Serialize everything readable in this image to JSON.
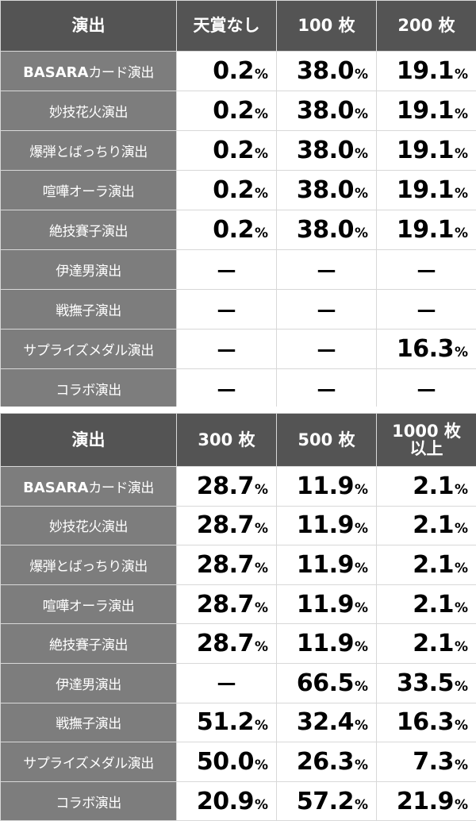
{
  "table1": {
    "headers": [
      "演出",
      "天賞なし",
      "100 枚",
      "200 枚"
    ],
    "rows": [
      {
        "label_b": "BASARA",
        "label": "カード演出",
        "values": [
          "0.2",
          "38.0",
          "19.1"
        ]
      },
      {
        "label_b": "",
        "label": "妙技花火演出",
        "values": [
          "0.2",
          "38.0",
          "19.1"
        ]
      },
      {
        "label_b": "",
        "label": "爆弾とばっちり演出",
        "values": [
          "0.2",
          "38.0",
          "19.1"
        ]
      },
      {
        "label_b": "",
        "label": "喧嘩オーラ演出",
        "values": [
          "0.2",
          "38.0",
          "19.1"
        ]
      },
      {
        "label_b": "",
        "label": "絶技賽子演出",
        "values": [
          "0.2",
          "38.0",
          "19.1"
        ]
      },
      {
        "label_b": "",
        "label": "伊達男演出",
        "values": [
          "—",
          "—",
          "—"
        ]
      },
      {
        "label_b": "",
        "label": "戦撫子演出",
        "values": [
          "—",
          "—",
          "—"
        ]
      },
      {
        "label_b": "",
        "label": "サプライズメダル演出",
        "values": [
          "—",
          "—",
          "16.3"
        ]
      },
      {
        "label_b": "",
        "label": "コラボ演出",
        "values": [
          "—",
          "—",
          "—"
        ]
      }
    ]
  },
  "table2": {
    "headers": [
      "演出",
      "300 枚",
      "500 枚",
      "1000 枚\n以上"
    ],
    "rows": [
      {
        "label_b": "BASARA",
        "label": "カード演出",
        "values": [
          "28.7",
          "11.9",
          "2.1"
        ]
      },
      {
        "label_b": "",
        "label": "妙技花火演出",
        "values": [
          "28.7",
          "11.9",
          "2.1"
        ]
      },
      {
        "label_b": "",
        "label": "爆弾とばっちり演出",
        "values": [
          "28.7",
          "11.9",
          "2.1"
        ]
      },
      {
        "label_b": "",
        "label": "喧嘩オーラ演出",
        "values": [
          "28.7",
          "11.9",
          "2.1"
        ]
      },
      {
        "label_b": "",
        "label": "絶技賽子演出",
        "values": [
          "28.7",
          "11.9",
          "2.1"
        ]
      },
      {
        "label_b": "",
        "label": "伊達男演出",
        "values": [
          "—",
          "66.5",
          "33.5"
        ]
      },
      {
        "label_b": "",
        "label": "戦撫子演出",
        "values": [
          "51.2",
          "32.4",
          "16.3"
        ]
      },
      {
        "label_b": "",
        "label": "サプライズメダル演出",
        "values": [
          "50.0",
          "26.3",
          "7.3"
        ]
      },
      {
        "label_b": "",
        "label": "コラボ演出",
        "values": [
          "20.9",
          "57.2",
          "21.9"
        ]
      }
    ]
  },
  "percent_sign": "%",
  "colors": {
    "header_bg": "#545454",
    "label_bg": "#7d7d7d",
    "value_bg": "#ffffff",
    "border": "#d8d8d8"
  }
}
